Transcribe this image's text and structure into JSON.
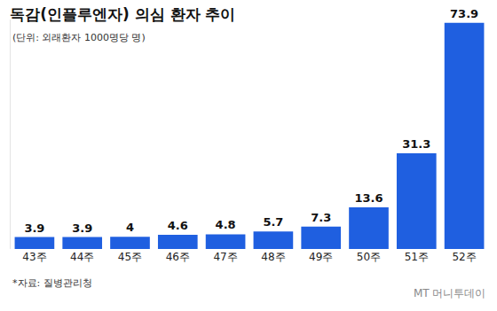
{
  "chart_data": {
    "type": "bar",
    "title": "독감(인플루엔자) 의심 환자 추이",
    "subtitle": "(단위: 외래환자 1000명당 명)",
    "categories": [
      "43주",
      "44주",
      "45주",
      "46주",
      "47주",
      "48주",
      "49주",
      "50주",
      "51주",
      "52주"
    ],
    "values": [
      3.9,
      3.9,
      4,
      4.6,
      4.8,
      5.7,
      7.3,
      13.6,
      31.3,
      73.9
    ],
    "color": "#1f5fe0",
    "ylim": [
      0,
      75
    ],
    "grid": false,
    "data_labels": true,
    "tick_labels": "x",
    "source": "*자료: 질병관리청",
    "credit": "MT 머니투데이"
  }
}
